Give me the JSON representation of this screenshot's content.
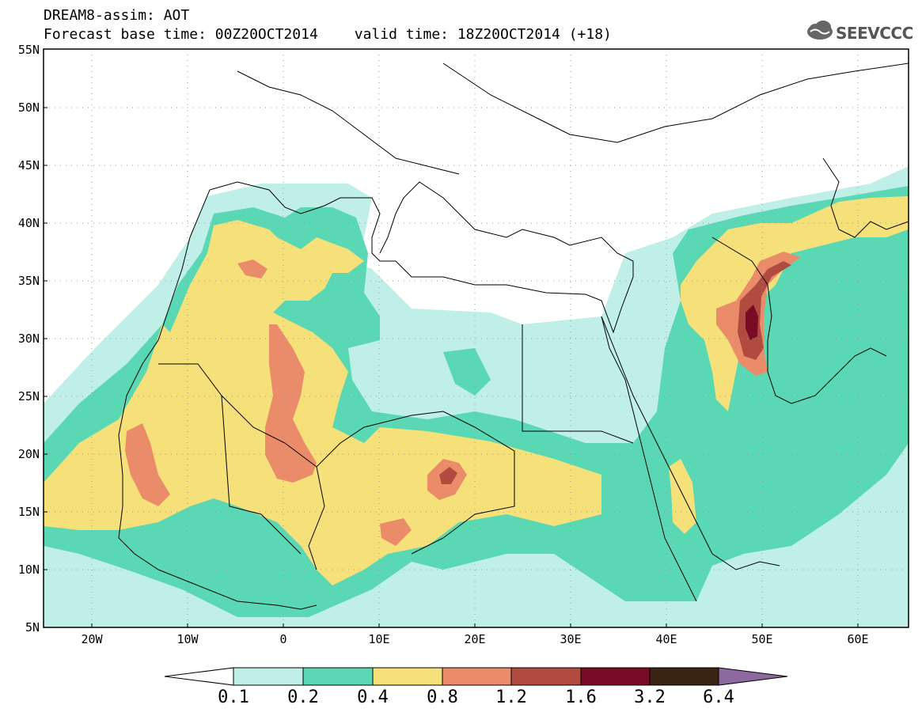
{
  "header": {
    "line1": "DREAM8-assim: AOT",
    "base_time": "Forecast base time: 00Z20OCT2014",
    "valid_time": "valid time: 18Z20OCT2014 (+18)",
    "logo_text": "SEEVCCC"
  },
  "map": {
    "lat_labels": [
      "55N",
      "50N",
      "45N",
      "40N",
      "35N",
      "30N",
      "25N",
      "20N",
      "15N",
      "10N",
      "5N"
    ],
    "lon_labels": [
      "20W",
      "10W",
      "0",
      "10E",
      "20E",
      "30E",
      "40E",
      "50E",
      "60E"
    ]
  },
  "colorbar": {
    "labels": [
      "0.1",
      "0.2",
      "0.4",
      "0.8",
      "1.2",
      "1.6",
      "3.2",
      "6.4"
    ],
    "colors": [
      "#ffffff",
      "#c0efe8",
      "#5ad8b4",
      "#f6e07a",
      "#ea8c6a",
      "#b14b3f",
      "#780c24",
      "#3a2414",
      "#8c6aa0"
    ]
  }
}
